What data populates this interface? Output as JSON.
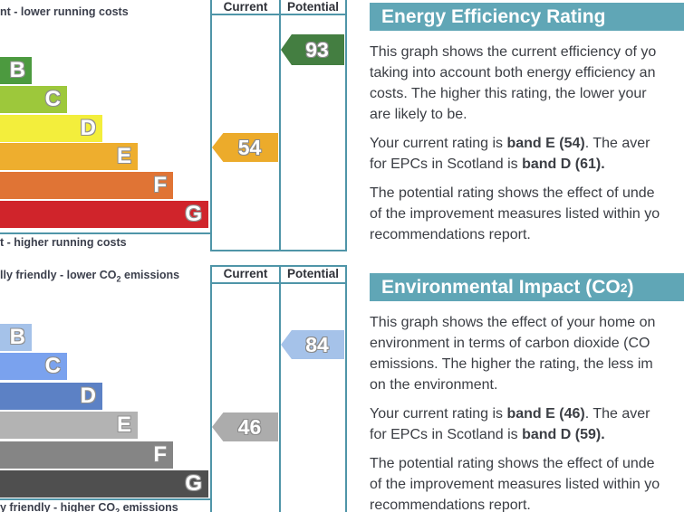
{
  "colors": {
    "border": "#4f95a8",
    "banner_bg": "#60a6b6",
    "banner_text": "#ffffff",
    "body_text": "#3b3e44"
  },
  "charts": [
    {
      "name": "Energy Efficiency Rating chart",
      "top_label": [
        {
          "t": "nt - lower running costs"
        }
      ],
      "bottom_label": [
        {
          "t": "t - higher running costs"
        }
      ],
      "col_current": "Current",
      "col_potential": "Potential",
      "bands": [
        {
          "letter": "B",
          "color": "#4c9a3f"
        },
        {
          "letter": "C",
          "color": "#9dc83b"
        },
        {
          "letter": "D",
          "color": "#f3ee3c"
        },
        {
          "letter": "E",
          "color": "#eeae2e"
        },
        {
          "letter": "F",
          "color": "#e07435"
        },
        {
          "letter": "G",
          "color": "#d0242b"
        }
      ],
      "current": {
        "value": "54",
        "color": "#ecab2b"
      },
      "potential": {
        "value": "93",
        "color": "#447e41"
      }
    },
    {
      "name": "Environmental Impact CO2 chart",
      "top_label": [
        {
          "t": "lly friendly - lower CO"
        },
        {
          "t": "2",
          "sub": true
        },
        {
          "t": " emissions"
        }
      ],
      "bottom_label": [
        {
          "t": "y friendly - higher CO"
        },
        {
          "t": "2",
          "sub": true
        },
        {
          "t": " emissions"
        }
      ],
      "col_current": "Current",
      "col_potential": "Potential",
      "bands": [
        {
          "letter": "B",
          "color": "#a5c2e9"
        },
        {
          "letter": "C",
          "color": "#7aa2ee"
        },
        {
          "letter": "D",
          "color": "#5c81c5"
        },
        {
          "letter": "E",
          "color": "#b3b3b3"
        },
        {
          "letter": "F",
          "color": "#858585"
        },
        {
          "letter": "G",
          "color": "#4f4f4f"
        }
      ],
      "current": {
        "value": "46",
        "color": "#acacac"
      },
      "potential": {
        "value": "84",
        "color": "#a5c2e9"
      }
    }
  ],
  "panels": [
    {
      "title": [
        {
          "t": "Energy Efficiency Rating"
        }
      ],
      "paragraphs": [
        [
          {
            "t": "This graph shows the current efficiency of yo"
          },
          {
            "br": true
          },
          {
            "t": "taking into account both energy efficiency an"
          },
          {
            "br": true
          },
          {
            "t": "costs. The higher this rating, the lower your"
          },
          {
            "br": true
          },
          {
            "t": "are likely to be."
          }
        ],
        [
          {
            "t": "Your current rating is "
          },
          {
            "t": "band E (54)",
            "b": true
          },
          {
            "t": ". The aver"
          },
          {
            "br": true
          },
          {
            "t": "for EPCs in Scotland is "
          },
          {
            "t": "band D (61).",
            "b": true
          }
        ],
        [
          {
            "t": "The potential rating shows the effect of unde"
          },
          {
            "br": true
          },
          {
            "t": "of the improvement measures listed within yo"
          },
          {
            "br": true
          },
          {
            "t": "recommendations report."
          }
        ]
      ]
    },
    {
      "title": [
        {
          "t": "Environmental Impact (CO"
        },
        {
          "t": "2",
          "sub": true
        },
        {
          "t": ")"
        }
      ],
      "paragraphs": [
        [
          {
            "t": "This graph shows the effect of your home on"
          },
          {
            "br": true
          },
          {
            "t": "environment in terms of carbon dioxide (CO"
          },
          {
            "br": true
          },
          {
            "t": "emissions. The higher the rating, the less im"
          },
          {
            "br": true
          },
          {
            "t": "on the environment."
          }
        ],
        [
          {
            "t": "Your current rating is "
          },
          {
            "t": "band E (46)",
            "b": true
          },
          {
            "t": ". The aver"
          },
          {
            "br": true
          },
          {
            "t": "for EPCs in Scotland is "
          },
          {
            "t": "band D (59).",
            "b": true
          }
        ],
        [
          {
            "t": "The potential rating shows the effect of unde"
          },
          {
            "br": true
          },
          {
            "t": "of the improvement measures listed within yo"
          },
          {
            "br": true
          },
          {
            "t": "recommendations report."
          }
        ]
      ]
    }
  ]
}
